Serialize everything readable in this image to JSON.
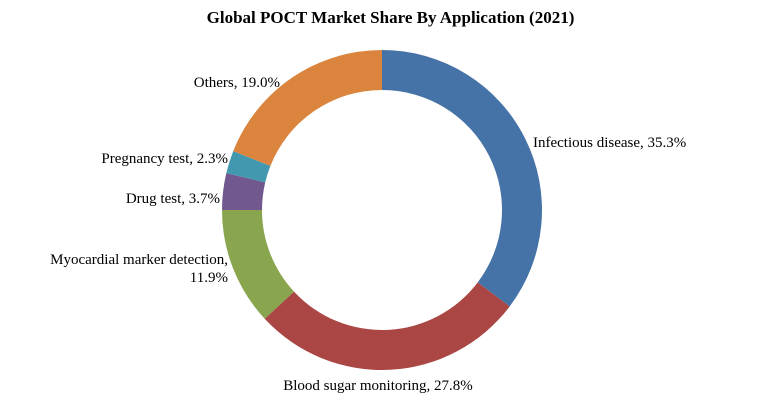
{
  "chart_data": {
    "type": "pie",
    "variant": "donut",
    "title": "Global POCT Market Share By Application (2021)",
    "start_angle_deg": 0,
    "direction": "clockwise",
    "slices": [
      {
        "name": "Infectious disease",
        "value": 35.3,
        "label": [
          "Infectious disease, 35.3%"
        ],
        "color": "#4572A7"
      },
      {
        "name": "Blood sugar monitoring",
        "value": 27.8,
        "label": [
          "Blood sugar monitoring, 27.8%"
        ],
        "color": "#AA4643"
      },
      {
        "name": "Myocardial marker detection",
        "value": 11.9,
        "label": [
          "Myocardial marker detection,",
          "11.9%"
        ],
        "color": "#89A54E"
      },
      {
        "name": "Drug test",
        "value": 3.7,
        "label": [
          "Drug test, 3.7%"
        ],
        "color": "#71588F"
      },
      {
        "name": "Pregnancy test",
        "value": 2.3,
        "label": [
          "Pregnancy test, 2.3%"
        ],
        "color": "#4198AF"
      },
      {
        "name": "Others",
        "value": 19.0,
        "label": [
          "Others, 19.0%"
        ],
        "color": "#DB843D"
      }
    ]
  }
}
